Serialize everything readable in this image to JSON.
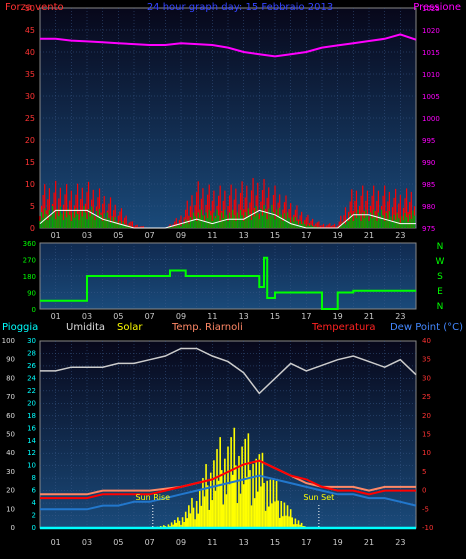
{
  "header": {
    "left_title": "Forza vento",
    "center_title": "24 hour graph day:  15 Febbraio 2013",
    "right_title": "Pressione"
  },
  "colors": {
    "wind": "#ff0000",
    "gust": "#00aa00",
    "avg_wind": "#ffffff",
    "pressure": "#ff00ff",
    "direction": "#00ff00",
    "humidity": "#cccccc",
    "solar": "#ffff00",
    "temp": "#ff0000",
    "heat_index": "#ff8866",
    "dew": "#2277cc",
    "rain": "#00ffff"
  },
  "x_ticks": [
    "01",
    "03",
    "05",
    "07",
    "09",
    "11",
    "13",
    "15",
    "17",
    "19",
    "21",
    "23"
  ],
  "panel1": {
    "left_ticks": [
      "50",
      "45",
      "40",
      "35",
      "30",
      "25",
      "20",
      "15",
      "10",
      "5",
      "0"
    ],
    "right_ticks": [
      "1025",
      "1020",
      "1015",
      "1010",
      "1005",
      "1000",
      "995",
      "990",
      "985",
      "980",
      "975"
    ]
  },
  "panel2": {
    "left_ticks": [
      "360",
      "270",
      "180",
      "90",
      "0"
    ],
    "right_labels": [
      "N",
      "W",
      "S",
      "E",
      "N"
    ]
  },
  "panel3": {
    "labels": {
      "rain": "Pioggia",
      "humidity": "Umidita",
      "solar": "Solar",
      "heat": "Temp. Riarnoli",
      "temp": "Temperatura",
      "dew": "Dew Point (°C)"
    },
    "hum_ticks": [
      "100",
      "90",
      "80",
      "70",
      "60",
      "50",
      "40",
      "30",
      "20",
      "10",
      "0"
    ],
    "solar_ticks": [
      "30",
      "28",
      "26",
      "24",
      "22",
      "20",
      "18",
      "16",
      "14",
      "12",
      "10",
      "8",
      "6",
      "4",
      "2",
      "0"
    ],
    "temp_ticks": [
      "40",
      "35",
      "30",
      "25",
      "20",
      "15",
      "10",
      "5",
      "0",
      "-5",
      "-10"
    ],
    "sunrise_label": "Sun Rise",
    "sunset_label": "Sun Set"
  },
  "chart_data": [
    {
      "type": "line",
      "title": "24 hour graph day:  15 Febbraio 2013",
      "ylabel_left": "Forza vento",
      "ylabel_right": "Pressione",
      "ylim_left": [
        0,
        50
      ],
      "ylim_right": [
        975,
        1025
      ],
      "x": [
        0,
        1,
        2,
        3,
        4,
        5,
        6,
        7,
        8,
        9,
        10,
        11,
        12,
        13,
        14,
        15,
        16,
        17,
        18,
        19,
        20,
        21,
        22,
        23,
        24
      ],
      "series": [
        {
          "name": "Pressione",
          "axis": "right",
          "values": [
            1018,
            1018,
            1017.6,
            1017.4,
            1017.2,
            1017,
            1016.8,
            1016.6,
            1016.6,
            1017,
            1016.8,
            1016.6,
            1016,
            1015,
            1014.5,
            1014,
            1014.5,
            1015,
            1016,
            1016.5,
            1017,
            1017.5,
            1018,
            1019,
            1017.8
          ]
        },
        {
          "name": "Forza vento",
          "axis": "left",
          "values": [
            4,
            5,
            4,
            5,
            4,
            2,
            0,
            0,
            0,
            1,
            4,
            4,
            4,
            4,
            5,
            5,
            3,
            1,
            0,
            0,
            4,
            4,
            4,
            3,
            4
          ]
        },
        {
          "name": "Raffica",
          "axis": "left",
          "values": [
            9,
            10,
            9,
            10,
            8,
            5,
            1,
            0,
            0,
            3,
            10,
            9,
            9,
            10,
            11,
            9,
            6,
            3,
            1,
            1,
            9,
            9,
            9,
            8,
            9
          ]
        },
        {
          "name": "Media",
          "axis": "left",
          "values": [
            1,
            4,
            4,
            4,
            2,
            1,
            0,
            0,
            0,
            1,
            2,
            1,
            2,
            2,
            4,
            3,
            1,
            0,
            0,
            0,
            3,
            3,
            2,
            1,
            1
          ]
        }
      ]
    },
    {
      "type": "line",
      "ylabel_right": "N W S E N",
      "ylim": [
        0,
        360
      ],
      "x": [
        0,
        1,
        2,
        3,
        4,
        5,
        6,
        7,
        8,
        8.3,
        9,
        9.3,
        10,
        11,
        12,
        13,
        14,
        14.3,
        14.5,
        15,
        17,
        18,
        19,
        20,
        24
      ],
      "series": [
        {
          "name": "Direzione",
          "values": [
            45,
            45,
            45,
            180,
            180,
            180,
            180,
            180,
            180,
            210,
            210,
            180,
            180,
            180,
            180,
            180,
            120,
            280,
            60,
            90,
            90,
            0,
            90,
            100,
            100
          ]
        }
      ]
    },
    {
      "type": "line",
      "ylim_humidity": [
        0,
        100
      ],
      "ylim_solar": [
        0,
        30
      ],
      "ylim_temp": [
        -10,
        40
      ],
      "x": [
        0,
        1,
        2,
        3,
        4,
        5,
        6,
        7,
        8,
        9,
        10,
        11,
        12,
        13,
        14,
        15,
        16,
        17,
        18,
        19,
        20,
        21,
        22,
        23,
        24
      ],
      "series": [
        {
          "name": "Umidita",
          "axis": "humidity",
          "values": [
            84,
            84,
            86,
            86,
            86,
            88,
            88,
            90,
            92,
            96,
            96,
            92,
            89,
            83,
            72,
            80,
            88,
            84,
            87,
            90,
            92,
            89,
            86,
            90,
            82
          ]
        },
        {
          "name": "Solar",
          "axis": "solar",
          "values": [
            0,
            0,
            0,
            0,
            0,
            0,
            0,
            0,
            0.5,
            2,
            6,
            13,
            16,
            16,
            13,
            8,
            3,
            0,
            0,
            0,
            0,
            0,
            0,
            0,
            0
          ]
        },
        {
          "name": "Temp. Riarnoli",
          "axis": "temp",
          "values": [
            -1,
            -1,
            -1,
            -1,
            0,
            0,
            0,
            0,
            0.5,
            1,
            2,
            3,
            5,
            7,
            8,
            6,
            4,
            2,
            1,
            1,
            1,
            0,
            1,
            1,
            1
          ]
        },
        {
          "name": "Temperatura",
          "axis": "temp",
          "values": [
            -2,
            -2,
            -2,
            -2,
            -1,
            -1,
            -1,
            -1,
            0,
            1,
            2,
            3,
            5,
            7,
            8,
            6,
            4,
            3,
            1,
            0,
            0,
            -1,
            0,
            0,
            0
          ]
        },
        {
          "name": "Dew Point",
          "axis": "temp",
          "values": [
            -5,
            -5,
            -5,
            -5,
            -4,
            -4,
            -3,
            -3,
            -2,
            -1,
            0,
            1,
            2,
            3,
            4,
            3,
            2,
            1,
            0,
            -1,
            -1,
            -2,
            -2,
            -3,
            -4
          ]
        },
        {
          "name": "Pioggia",
          "axis": "solar",
          "values": [
            0,
            0,
            0,
            0,
            0,
            0,
            0,
            0,
            0,
            0,
            0,
            0,
            0,
            0,
            0,
            0,
            0,
            0,
            0,
            0,
            0,
            0,
            0,
            0,
            0
          ]
        }
      ],
      "sunrise_hour": 7.2,
      "sunset_hour": 17.8
    }
  ]
}
